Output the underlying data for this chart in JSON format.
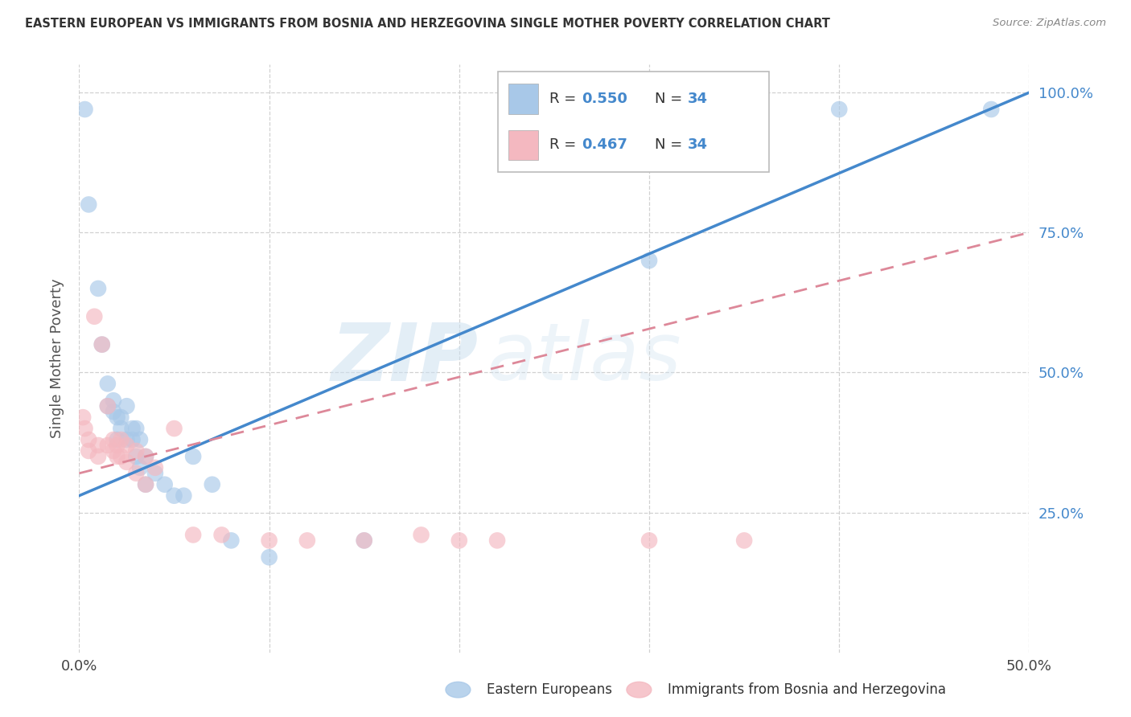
{
  "title": "EASTERN EUROPEAN VS IMMIGRANTS FROM BOSNIA AND HERZEGOVINA SINGLE MOTHER POVERTY CORRELATION CHART",
  "source": "Source: ZipAtlas.com",
  "ylabel": "Single Mother Poverty",
  "legend_label_blue": "Eastern Europeans",
  "legend_label_pink": "Immigrants from Bosnia and Herzegovina",
  "blue_color": "#a8c8e8",
  "pink_color": "#f4b8c0",
  "line_blue_color": "#4488cc",
  "line_pink_color": "#dd8899",
  "watermark_zip": "ZIP",
  "watermark_atlas": "atlas",
  "blue_R": "0.550",
  "blue_N": "34",
  "pink_R": "0.467",
  "pink_N": "34",
  "accent_color": "#4488cc",
  "blue_scatter": [
    [
      0.3,
      97.0
    ],
    [
      0.5,
      80.0
    ],
    [
      1.0,
      65.0
    ],
    [
      1.2,
      55.0
    ],
    [
      1.5,
      48.0
    ],
    [
      1.5,
      44.0
    ],
    [
      1.8,
      45.0
    ],
    [
      1.8,
      43.0
    ],
    [
      2.0,
      42.0
    ],
    [
      2.0,
      38.0
    ],
    [
      2.2,
      42.0
    ],
    [
      2.2,
      40.0
    ],
    [
      2.5,
      44.0
    ],
    [
      2.5,
      38.0
    ],
    [
      2.8,
      40.0
    ],
    [
      2.8,
      38.0
    ],
    [
      3.0,
      40.0
    ],
    [
      3.0,
      35.0
    ],
    [
      3.2,
      38.0
    ],
    [
      3.2,
      33.0
    ],
    [
      3.5,
      35.0
    ],
    [
      3.5,
      30.0
    ],
    [
      4.0,
      32.0
    ],
    [
      4.5,
      30.0
    ],
    [
      5.0,
      28.0
    ],
    [
      5.5,
      28.0
    ],
    [
      6.0,
      35.0
    ],
    [
      7.0,
      30.0
    ],
    [
      8.0,
      20.0
    ],
    [
      10.0,
      17.0
    ],
    [
      15.0,
      20.0
    ],
    [
      30.0,
      70.0
    ],
    [
      40.0,
      97.0
    ],
    [
      48.0,
      97.0
    ]
  ],
  "pink_scatter": [
    [
      0.2,
      42.0
    ],
    [
      0.3,
      40.0
    ],
    [
      0.5,
      38.0
    ],
    [
      0.5,
      36.0
    ],
    [
      0.8,
      60.0
    ],
    [
      1.0,
      37.0
    ],
    [
      1.0,
      35.0
    ],
    [
      1.2,
      55.0
    ],
    [
      1.5,
      44.0
    ],
    [
      1.5,
      37.0
    ],
    [
      1.8,
      38.0
    ],
    [
      1.8,
      36.0
    ],
    [
      2.0,
      37.0
    ],
    [
      2.0,
      35.0
    ],
    [
      2.2,
      38.0
    ],
    [
      2.2,
      35.0
    ],
    [
      2.5,
      37.0
    ],
    [
      2.5,
      34.0
    ],
    [
      3.0,
      36.0
    ],
    [
      3.0,
      32.0
    ],
    [
      3.5,
      35.0
    ],
    [
      3.5,
      30.0
    ],
    [
      4.0,
      33.0
    ],
    [
      5.0,
      40.0
    ],
    [
      6.0,
      21.0
    ],
    [
      7.5,
      21.0
    ],
    [
      10.0,
      20.0
    ],
    [
      12.0,
      20.0
    ],
    [
      15.0,
      20.0
    ],
    [
      18.0,
      21.0
    ],
    [
      20.0,
      20.0
    ],
    [
      22.0,
      20.0
    ],
    [
      30.0,
      20.0
    ],
    [
      35.0,
      20.0
    ]
  ],
  "xlim": [
    0,
    50
  ],
  "ylim": [
    0,
    105
  ],
  "figsize": [
    14.06,
    8.92
  ],
  "dpi": 100,
  "blue_line_x": [
    0,
    50
  ],
  "blue_line_y": [
    28,
    100
  ],
  "pink_line_x": [
    0,
    50
  ],
  "pink_line_y": [
    32,
    75
  ]
}
